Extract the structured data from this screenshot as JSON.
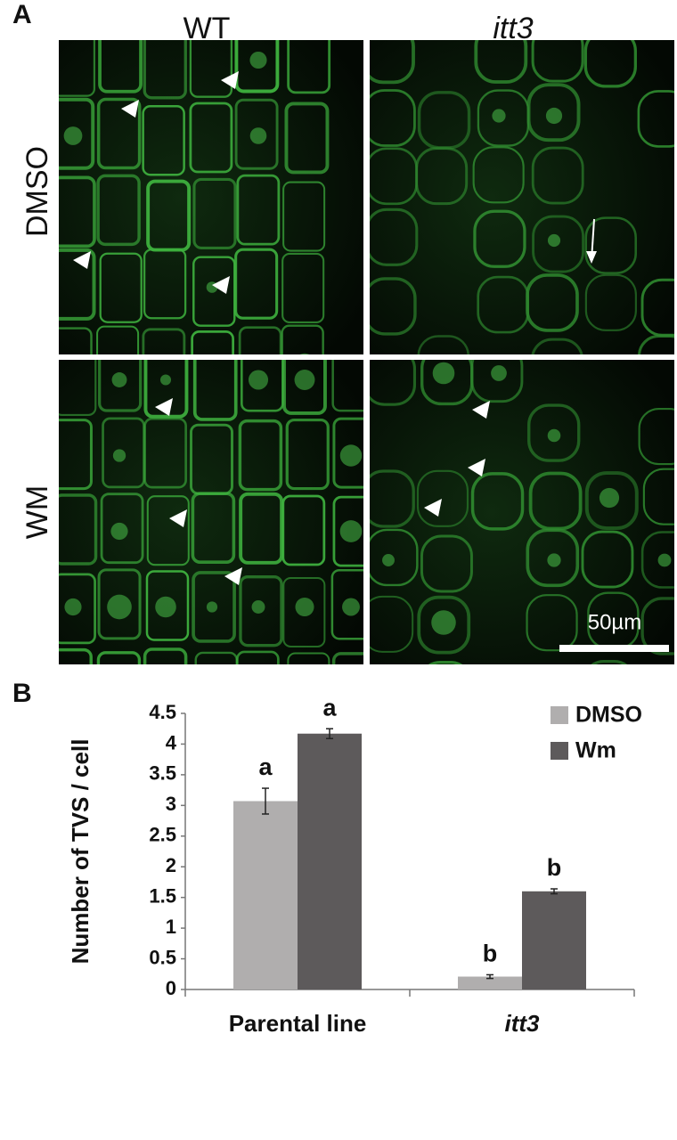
{
  "panel_a": {
    "label": "A",
    "columns": [
      "WT",
      "itt3"
    ],
    "rows": [
      "DMSO",
      "WM"
    ],
    "scale_bar": "50µm"
  },
  "chart_data": {
    "type": "bar",
    "panel_label": "B",
    "y_label": "Number of TVS / cell",
    "categories": [
      "Parental line",
      "itt3"
    ],
    "series": [
      {
        "name": "DMSO",
        "color": "#b0aeae",
        "values": [
          3.07,
          0.21
        ],
        "errors": [
          0.21,
          0.03
        ],
        "letters": [
          "a",
          "b"
        ]
      },
      {
        "name": "Wm",
        "color": "#5d5a5b",
        "values": [
          4.17,
          1.6
        ],
        "errors": [
          0.08,
          0.04
        ],
        "letters": [
          "a",
          "b"
        ]
      }
    ],
    "ylim": [
      0,
      4.5
    ],
    "yticks": [
      0,
      0.5,
      1,
      1.5,
      2,
      2.5,
      3,
      3.5,
      4,
      4.5
    ],
    "legend": "top-right",
    "grid": false
  }
}
